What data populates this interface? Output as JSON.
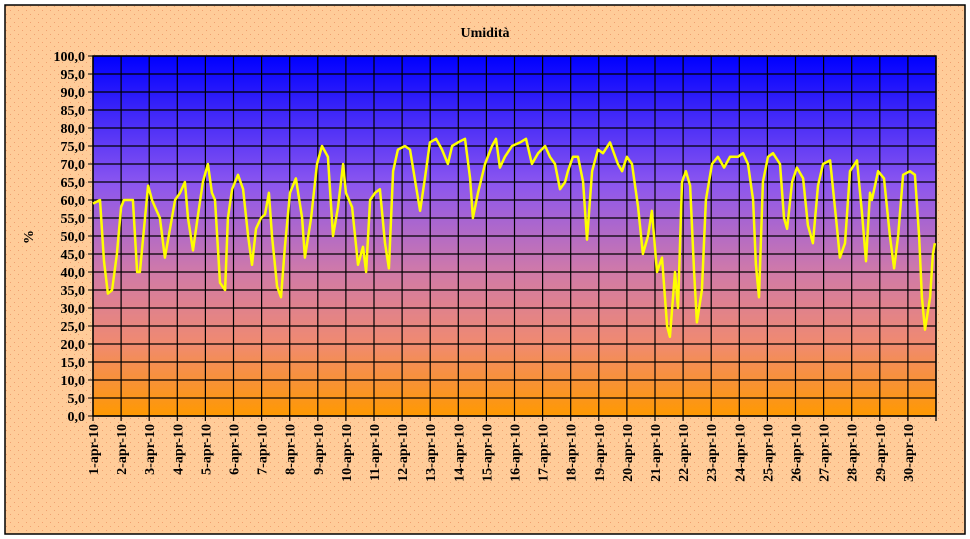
{
  "chart_data": {
    "type": "line",
    "title": "Umidità",
    "xlabel": "",
    "ylabel": "%",
    "ylim": [
      0,
      100
    ],
    "ytick_step": 5,
    "yticks": [
      "0,0",
      "5,0",
      "10,0",
      "15,0",
      "20,0",
      "25,0",
      "30,0",
      "35,0",
      "40,0",
      "45,0",
      "50,0",
      "55,0",
      "60,0",
      "65,0",
      "70,0",
      "75,0",
      "80,0",
      "85,0",
      "90,0",
      "95,0",
      "100,0"
    ],
    "xlim_days": [
      0,
      30
    ],
    "xticks": [
      "1-apr-10",
      "2-apr-10",
      "3-apr-10",
      "4-apr-10",
      "5-apr-10",
      "6-apr-10",
      "7-apr-10",
      "8-apr-10",
      "9-apr-10",
      "10-apr-10",
      "11-apr-10",
      "12-apr-10",
      "13-apr-10",
      "14-apr-10",
      "15-apr-10",
      "16-apr-10",
      "17-apr-10",
      "18-apr-10",
      "19-apr-10",
      "20-apr-10",
      "21-apr-10",
      "22-apr-10",
      "23-apr-10",
      "24-apr-10",
      "25-apr-10",
      "26-apr-10",
      "27-apr-10",
      "28-apr-10",
      "29-apr-10",
      "30-apr-10"
    ],
    "grid": true,
    "legend": "none",
    "colors": {
      "line": "#ffff00",
      "plot_top": "#0000ff",
      "plot_mid": "#cc6699",
      "plot_bottom": "#ff9900",
      "background": "#ffcc99"
    },
    "series": [
      {
        "name": "Umidità",
        "x_days": [
          0.0,
          0.25,
          0.39,
          0.53,
          0.68,
          0.85,
          1.0,
          1.1,
          1.42,
          1.57,
          1.67,
          1.85,
          1.96,
          2.1,
          2.21,
          2.38,
          2.56,
          2.74,
          2.92,
          3.1,
          3.27,
          3.38,
          3.56,
          3.74,
          3.91,
          4.09,
          4.23,
          4.34,
          4.52,
          4.7,
          4.8,
          4.95,
          5.16,
          5.34,
          5.52,
          5.66,
          5.8,
          5.98,
          6.12,
          6.26,
          6.37,
          6.55,
          6.69,
          6.83,
          7.01,
          7.22,
          7.44,
          7.54,
          7.76,
          7.97,
          8.15,
          8.36,
          8.54,
          8.72,
          8.9,
          9.0,
          9.22,
          9.43,
          9.61,
          9.72,
          9.86,
          10.04,
          10.21,
          10.39,
          10.53,
          10.68,
          10.85,
          11.1,
          11.28,
          11.49,
          11.64,
          11.81,
          11.99,
          12.21,
          12.42,
          12.63,
          12.78,
          12.99,
          13.24,
          13.42,
          13.52,
          13.7,
          13.95,
          14.2,
          14.34,
          14.48,
          14.66,
          14.91,
          15.2,
          15.41,
          15.62,
          15.84,
          16.09,
          16.26,
          16.44,
          16.62,
          16.8,
          16.9,
          17.08,
          17.26,
          17.44,
          17.58,
          17.76,
          17.97,
          18.15,
          18.4,
          18.68,
          18.83,
          19.0,
          19.18,
          19.4,
          19.57,
          19.75,
          19.89,
          20.07,
          20.25,
          20.43,
          20.53,
          20.71,
          20.82,
          20.96,
          21.1,
          21.25,
          21.39,
          21.49,
          21.67,
          21.81,
          22.03,
          22.24,
          22.46,
          22.67,
          22.95,
          23.13,
          23.31,
          23.49,
          23.59,
          23.7,
          23.84,
          24.02,
          24.2,
          24.45,
          24.59,
          24.7,
          24.88,
          25.05,
          25.27,
          25.44,
          25.62,
          25.8,
          25.98,
          26.23,
          26.44,
          26.58,
          26.76,
          26.94,
          27.19,
          27.37,
          27.51,
          27.65,
          27.72,
          27.94,
          28.15,
          28.36,
          28.51,
          28.65,
          28.83,
          29.07,
          29.25,
          29.4,
          29.5,
          29.61,
          29.79,
          29.89,
          29.96
        ],
        "values": [
          59,
          60,
          43,
          34,
          35,
          45,
          58,
          60,
          60,
          40,
          40,
          55,
          64,
          60,
          58,
          55,
          44,
          52,
          60,
          62,
          65,
          55,
          46,
          56,
          65,
          70,
          62,
          60,
          37,
          35,
          55,
          63,
          67,
          63,
          50,
          42,
          52,
          55,
          56,
          62,
          50,
          36,
          33,
          47,
          62,
          66,
          55,
          44,
          55,
          70,
          75,
          72,
          50,
          58,
          70,
          62,
          58,
          42,
          47,
          40,
          60,
          62,
          63,
          48,
          41,
          68,
          74,
          75,
          74,
          64,
          57,
          66,
          76,
          77,
          74,
          70,
          75,
          76,
          77,
          66,
          55,
          62,
          70,
          75,
          77,
          69,
          72,
          75,
          76,
          77,
          70,
          73,
          75,
          72,
          70,
          63,
          65,
          68,
          72,
          72,
          65,
          49,
          68,
          74,
          73,
          76,
          70,
          68,
          72,
          70,
          58,
          45,
          50,
          57,
          40,
          44,
          25,
          22,
          40,
          30,
          65,
          68,
          64,
          40,
          26,
          35,
          60,
          70,
          72,
          69,
          72,
          72,
          73,
          70,
          60,
          42,
          33,
          65,
          72,
          73,
          70,
          55,
          52,
          65,
          69,
          66,
          53,
          48,
          64,
          70,
          71,
          55,
          44,
          48,
          68,
          71,
          56,
          43,
          62,
          60,
          68,
          66,
          50,
          41,
          50,
          67,
          68,
          67,
          50,
          33,
          24,
          33,
          45,
          48
        ]
      }
    ]
  }
}
